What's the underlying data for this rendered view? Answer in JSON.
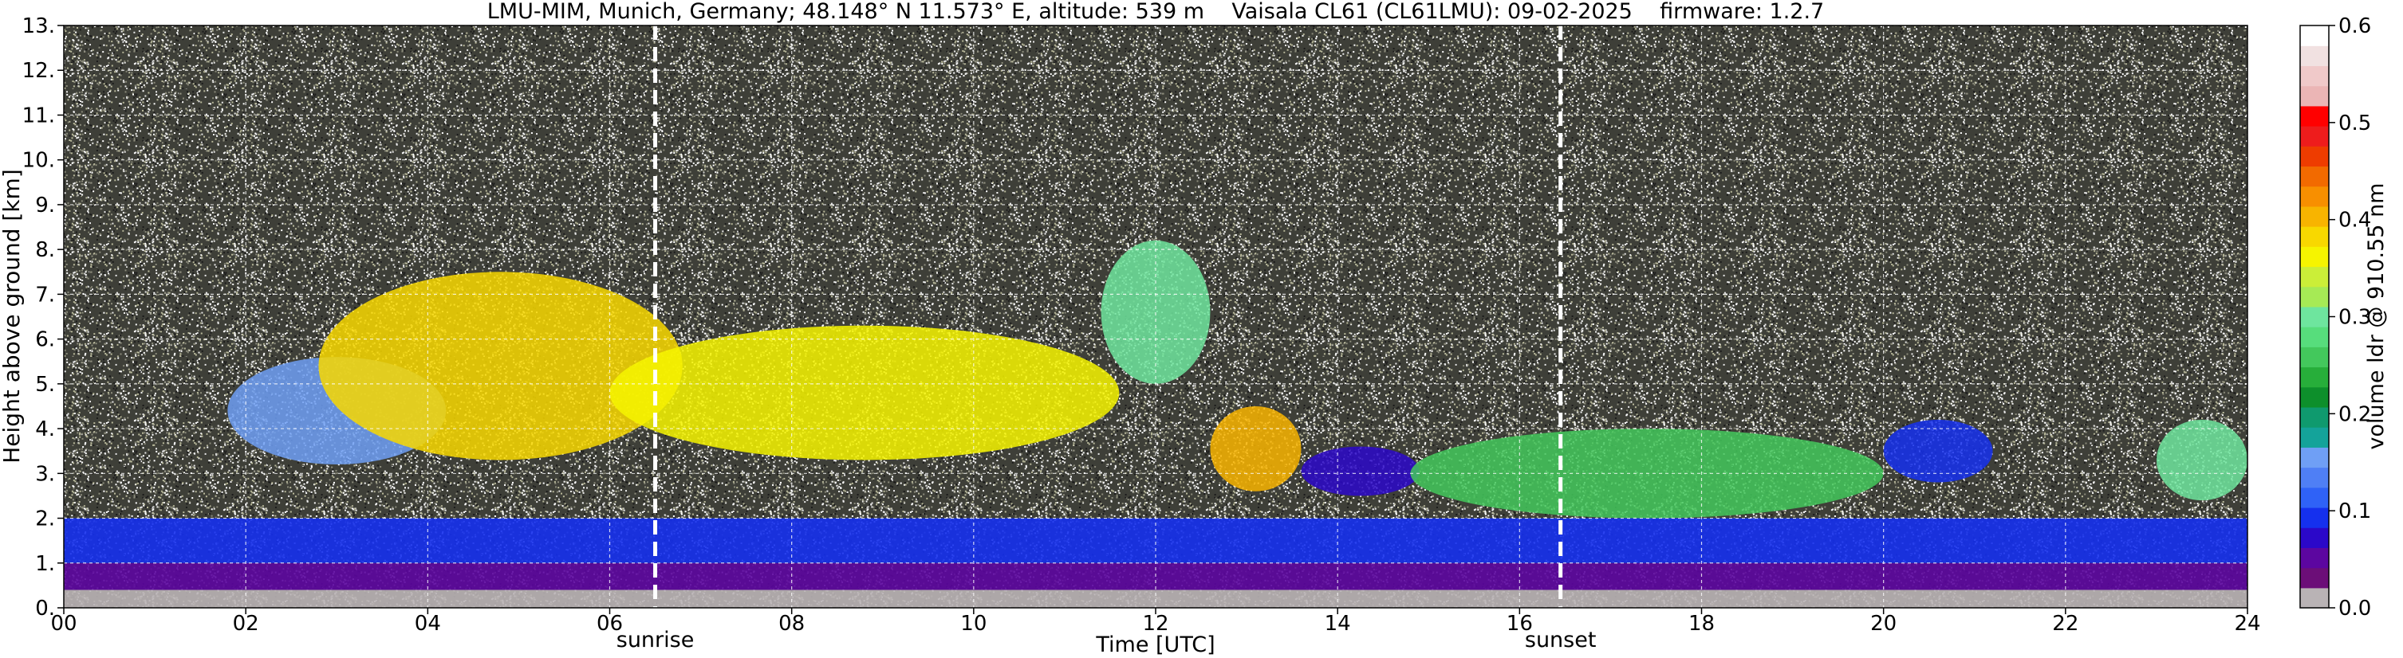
{
  "chart_data": {
    "type": "heatmap",
    "title": "LMU-MIM, Munich, Germany; 48.148° N 11.573° E, altitude: 539 m    Vaisala CL61 (CL61LMU): 09-02-2025    firmware: 1.2.7",
    "xlabel": "Time [UTC]",
    "ylabel": "Height above ground [km]",
    "xlim": [
      0,
      24
    ],
    "ylim": [
      0,
      13
    ],
    "x_ticks": [
      "00",
      "02",
      "04",
      "06",
      "08",
      "10",
      "12",
      "14",
      "16",
      "18",
      "20",
      "22",
      "24"
    ],
    "y_ticks": [
      "0.",
      "1.",
      "2.",
      "3.",
      "4.",
      "5.",
      "6.",
      "7.",
      "8.",
      "9.",
      "10.",
      "11.",
      "12.",
      "13."
    ],
    "grid": true,
    "markers": [
      {
        "label": "sunrise",
        "hour": 6.5
      },
      {
        "label": "sunset",
        "hour": 16.45
      }
    ],
    "colorbar": {
      "label": "volume ldr @ 910.55 nm",
      "range": [
        0.0,
        0.6
      ],
      "ticks": [
        "0.0",
        "0.1",
        "0.2",
        "0.3",
        "0.4",
        "0.5",
        "0.6"
      ],
      "colors": [
        "#b9b3b5",
        "#6c0e78",
        "#5c06a0",
        "#2b08c9",
        "#1530ee",
        "#2f62f7",
        "#4f7ff5",
        "#6f9ff5",
        "#14a39a",
        "#0f9a6e",
        "#0d8f2b",
        "#27ae3a",
        "#43c85c",
        "#57dd7c",
        "#6ee59e",
        "#a6ea55",
        "#cbee38",
        "#f6f400",
        "#f8d800",
        "#f8b400",
        "#f88f00",
        "#f26a00",
        "#ee3c00",
        "#ee1c1c",
        "#ff0000",
        "#ebb5b5",
        "#f0c9c9",
        "#f1e1e1",
        "#ffffff"
      ]
    },
    "features": [
      {
        "kind": "aerosol",
        "start_hour": 0,
        "end_hour": 24,
        "base_km": 0.0,
        "top_km": 0.4,
        "ldr": 0.02
      },
      {
        "kind": "aerosol",
        "start_hour": 0,
        "end_hour": 24,
        "base_km": 0.4,
        "top_km": 1.0,
        "ldr": 0.05
      },
      {
        "kind": "aerosol",
        "start_hour": 0,
        "end_hour": 24,
        "base_km": 1.0,
        "top_km": 2.0,
        "ldr": 0.09
      },
      {
        "kind": "cloud",
        "start_hour": 1.8,
        "end_hour": 4.2,
        "base_km": 3.2,
        "top_km": 5.6,
        "ldr": 0.15
      },
      {
        "kind": "cloud",
        "start_hour": 2.8,
        "end_hour": 6.8,
        "base_km": 3.3,
        "top_km": 7.5,
        "ldr": 0.38
      },
      {
        "kind": "cloud",
        "start_hour": 6.0,
        "end_hour": 11.6,
        "base_km": 3.3,
        "top_km": 6.3,
        "ldr": 0.36
      },
      {
        "kind": "cloud",
        "start_hour": 11.4,
        "end_hour": 12.6,
        "base_km": 5.0,
        "top_km": 8.2,
        "ldr": 0.3
      },
      {
        "kind": "cloud",
        "start_hour": 12.6,
        "end_hour": 13.6,
        "base_km": 2.6,
        "top_km": 4.5,
        "ldr": 0.4
      },
      {
        "kind": "cloud",
        "start_hour": 13.6,
        "end_hour": 14.9,
        "base_km": 2.5,
        "top_km": 3.6,
        "ldr": 0.08
      },
      {
        "kind": "cloud",
        "start_hour": 14.8,
        "end_hour": 20.0,
        "base_km": 2.0,
        "top_km": 4.0,
        "ldr": 0.25
      },
      {
        "kind": "cloud",
        "start_hour": 20.0,
        "end_hour": 21.2,
        "base_km": 2.8,
        "top_km": 4.2,
        "ldr": 0.1
      },
      {
        "kind": "cloud",
        "start_hour": 23.0,
        "end_hour": 24.0,
        "base_km": 2.4,
        "top_km": 4.2,
        "ldr": 0.3
      }
    ]
  }
}
